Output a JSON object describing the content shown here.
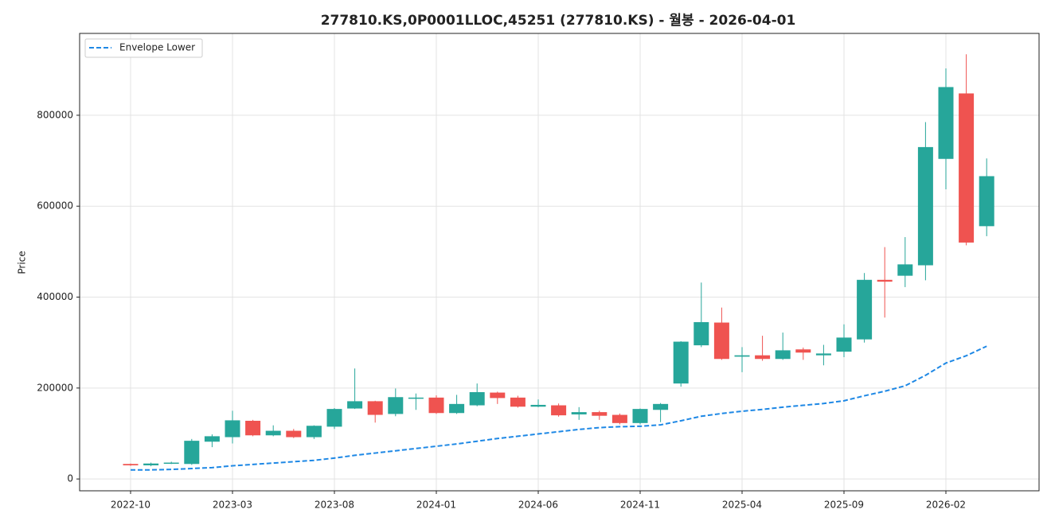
{
  "chart_data": {
    "type": "candlestick",
    "title": "277810.KS,0P0001LLOC,45251 (277810.KS) - 월봉 - 2026-04-01",
    "y_label": "Price",
    "categories": [
      "2022-10",
      "2022-11",
      "2022-12",
      "2023-01",
      "2023-02",
      "2023-03",
      "2023-04",
      "2023-05",
      "2023-06",
      "2023-07",
      "2023-08",
      "2023-09",
      "2023-10",
      "2023-11",
      "2023-12",
      "2024-01",
      "2024-02",
      "2024-03",
      "2024-04",
      "2024-05",
      "2024-06",
      "2024-07",
      "2024-08",
      "2024-09",
      "2024-10",
      "2024-11",
      "2024-12",
      "2025-01",
      "2025-02",
      "2025-03",
      "2025-04",
      "2025-05",
      "2025-06",
      "2025-07",
      "2025-08",
      "2025-09",
      "2025-10",
      "2025-11",
      "2025-12",
      "2026-01",
      "2026-02",
      "2026-03",
      "2026-04"
    ],
    "xticks": [
      "2022-10",
      "2023-03",
      "2023-08",
      "2024-01",
      "2024-06",
      "2024-11",
      "2025-04",
      "2025-09",
      "2026-02"
    ],
    "open": [
      33000,
      30000,
      34000,
      33000,
      82000,
      92000,
      128000,
      96000,
      106000,
      92000,
      115000,
      155000,
      171000,
      143000,
      177000,
      179000,
      145000,
      162000,
      190000,
      179000,
      159000,
      162000,
      142000,
      147000,
      141000,
      123000,
      152000,
      210000,
      294000,
      344000,
      269000,
      272000,
      264000,
      285000,
      272000,
      280000,
      307000,
      438000,
      447000,
      470000,
      704000,
      848000,
      556000
    ],
    "high": [
      34000,
      36000,
      38000,
      88000,
      98000,
      150000,
      130000,
      118000,
      110000,
      118000,
      156000,
      243000,
      172000,
      199000,
      188000,
      184000,
      185000,
      210000,
      192000,
      183000,
      175000,
      166000,
      158000,
      150000,
      144000,
      155000,
      167000,
      303000,
      432000,
      377000,
      290000,
      315000,
      322000,
      289000,
      295000,
      340000,
      453000,
      510000,
      532000,
      785000,
      903000,
      934000,
      705000
    ],
    "low": [
      29000,
      28000,
      33000,
      31000,
      70000,
      78000,
      94000,
      94000,
      90000,
      88000,
      110000,
      154000,
      124000,
      138000,
      152000,
      143000,
      143000,
      160000,
      165000,
      157000,
      158000,
      137000,
      130000,
      130000,
      120000,
      120000,
      125000,
      203000,
      290000,
      262000,
      235000,
      260000,
      262000,
      262000,
      250000,
      268000,
      300000,
      355000,
      422000,
      437000,
      637000,
      514000,
      534000
    ],
    "close": [
      30000,
      34000,
      36000,
      84000,
      94000,
      129000,
      96000,
      106000,
      92000,
      117000,
      154000,
      171000,
      141000,
      180000,
      179000,
      145000,
      165000,
      191000,
      178000,
      159000,
      163000,
      140000,
      147000,
      139000,
      123000,
      154000,
      165000,
      302000,
      345000,
      264000,
      272000,
      264000,
      283000,
      278000,
      276000,
      311000,
      438000,
      434000,
      472000,
      730000,
      862000,
      520000,
      666000
    ],
    "up_color": "#26a69a",
    "down_color": "#ef5350",
    "series": [
      {
        "name": "Envelope Lower",
        "color": "#1e88e5",
        "dashed": true,
        "values": [
          20000,
          20000,
          21000,
          23000,
          25000,
          29000,
          32000,
          35000,
          38000,
          41000,
          46000,
          52000,
          57000,
          62000,
          67000,
          72000,
          77000,
          83000,
          89000,
          94000,
          99000,
          104000,
          109000,
          113000,
          115000,
          116000,
          119000,
          128000,
          138000,
          144000,
          149000,
          153000,
          158000,
          162000,
          166000,
          172000,
          183000,
          193000,
          205000,
          228000,
          255000,
          271000,
          292000
        ]
      }
    ],
    "ylim": [
      -26000,
      980000
    ],
    "yticks": [
      0,
      200000,
      400000,
      600000,
      800000
    ],
    "grid": true,
    "legend": "upper left"
  }
}
